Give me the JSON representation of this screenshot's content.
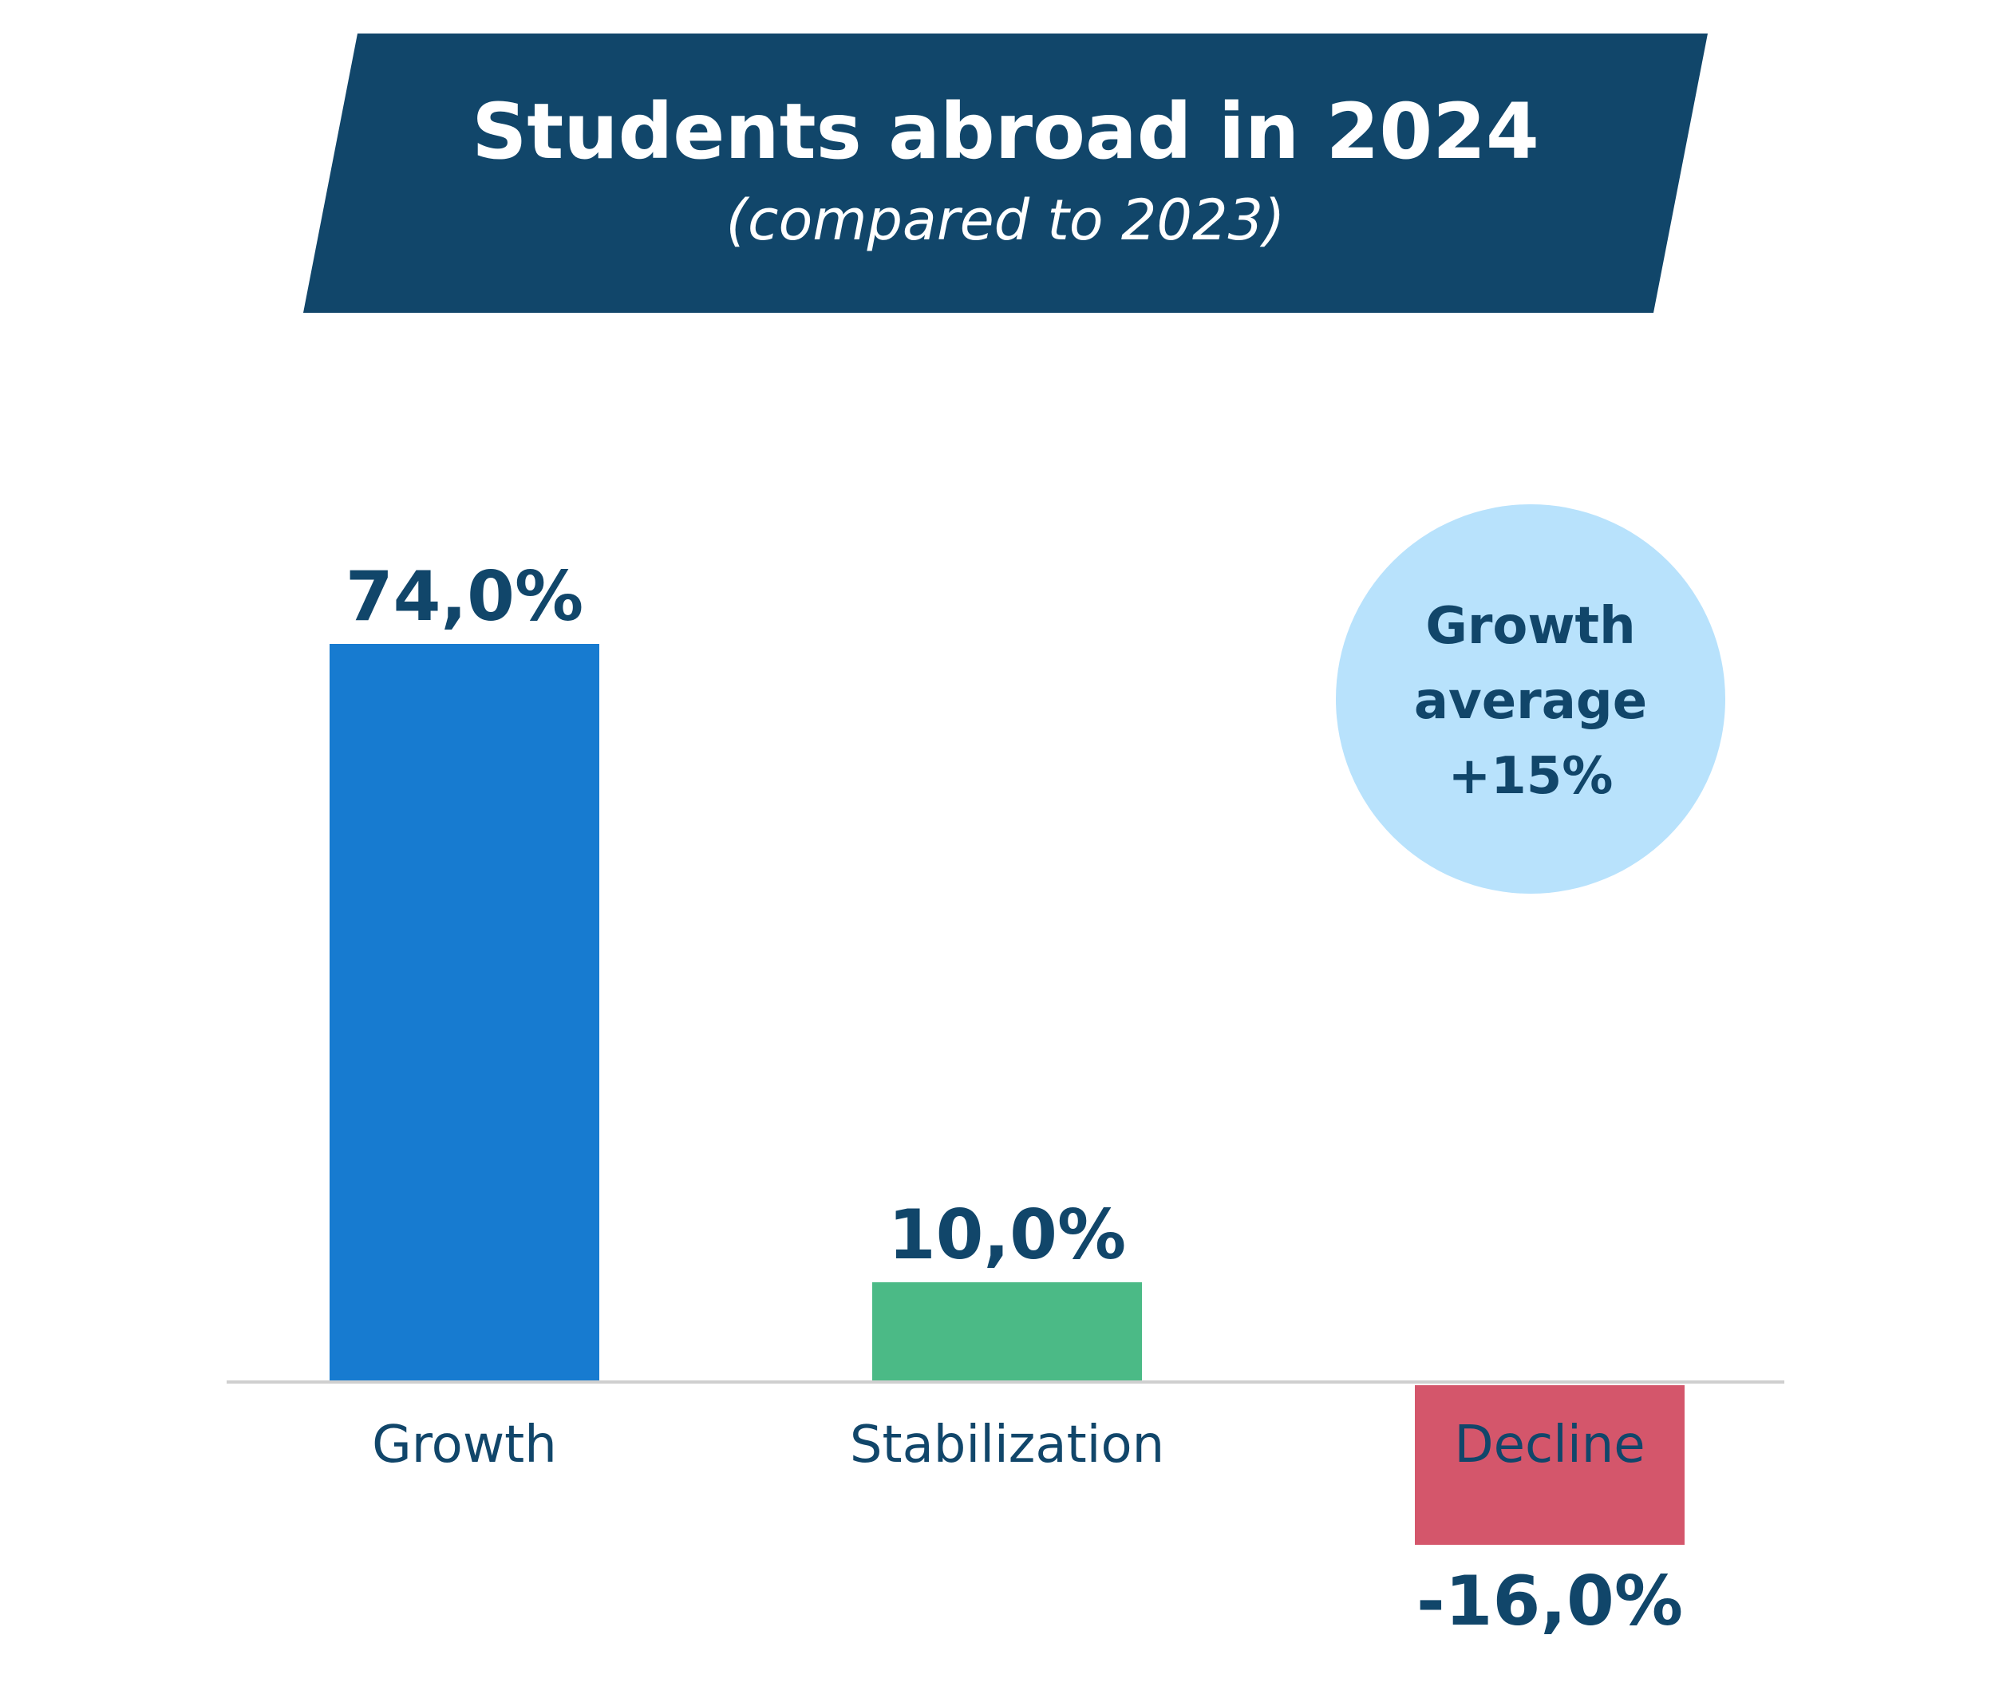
{
  "colors": {
    "banner": "#11466a",
    "banner_text": "#ffffff",
    "text_dark": "#11466a",
    "axis": "#cfcfcf",
    "badge": "#b8e2fc",
    "bar_growth": "#177bd0",
    "bar_stabilization": "#4bba86",
    "bar_decline": "#d4566b"
  },
  "chart_data": {
    "type": "bar",
    "title": "Students abroad in 2024",
    "subtitle": "(compared to 2023)",
    "categories": [
      "Growth",
      "Stabilization",
      "Decline"
    ],
    "values": [
      74.0,
      10.0,
      -16.0
    ],
    "value_labels": [
      "74,0%",
      "10,0%",
      "-16,0%"
    ],
    "ylim": [
      -16,
      74
    ],
    "grid": false,
    "legend": "none",
    "annotation": {
      "lines": [
        "Growth",
        "average",
        "+15%"
      ]
    }
  }
}
